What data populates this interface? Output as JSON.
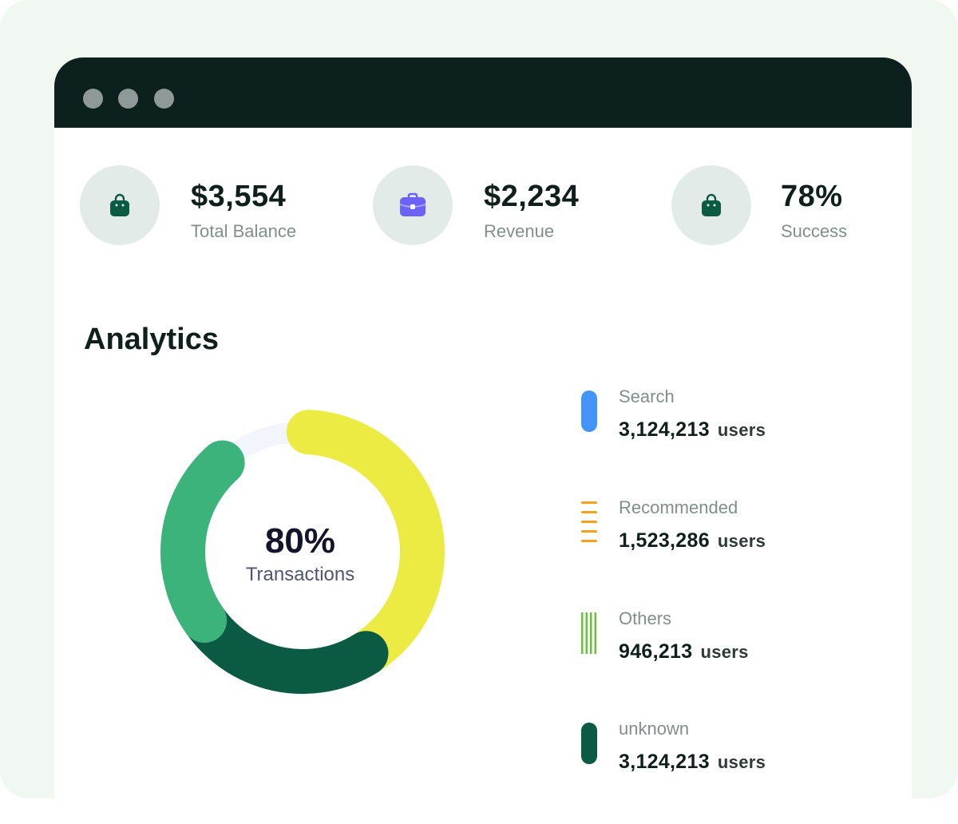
{
  "stats": [
    {
      "value": "$3,554",
      "label": "Total Balance",
      "icon": "shopping-bag-icon",
      "icon_color": "#0b5a43"
    },
    {
      "value": "$2,234",
      "label": "Revenue",
      "icon": "briefcase-icon",
      "icon_color": "#6c63f6"
    },
    {
      "value": "78%",
      "label": "Success",
      "icon": "shopping-bag-icon",
      "icon_color": "#0b5a43"
    }
  ],
  "analytics": {
    "title": "Analytics",
    "center_value": "80%",
    "center_label": "Transactions"
  },
  "legend": [
    {
      "name": "Search",
      "count": "3,124,213",
      "unit": "users",
      "color": "#4394f6",
      "pattern": "solid"
    },
    {
      "name": "Recommended",
      "count": "1,523,286",
      "unit": "users",
      "color": "#f5a01d",
      "pattern": "horizontal-stripes"
    },
    {
      "name": "Others",
      "count": "946,213",
      "unit": "users",
      "color": "#66c23a",
      "pattern": "vertical-stripes"
    },
    {
      "name": "unknown",
      "count": "3,124,213",
      "unit": "users",
      "color": "#0b5a43",
      "pattern": "solid"
    }
  ],
  "chart_data": {
    "type": "pie",
    "title": "",
    "center_text": "80% Transactions",
    "track_color": "#f2f6fc",
    "segments": [
      {
        "color": "#eceb43",
        "start_deg": 3,
        "end_deg": 150
      },
      {
        "color": "#0b5a43",
        "start_deg": 148,
        "end_deg": 252
      },
      {
        "color": "#3bb37a",
        "start_deg": 235,
        "end_deg": 318
      }
    ]
  }
}
